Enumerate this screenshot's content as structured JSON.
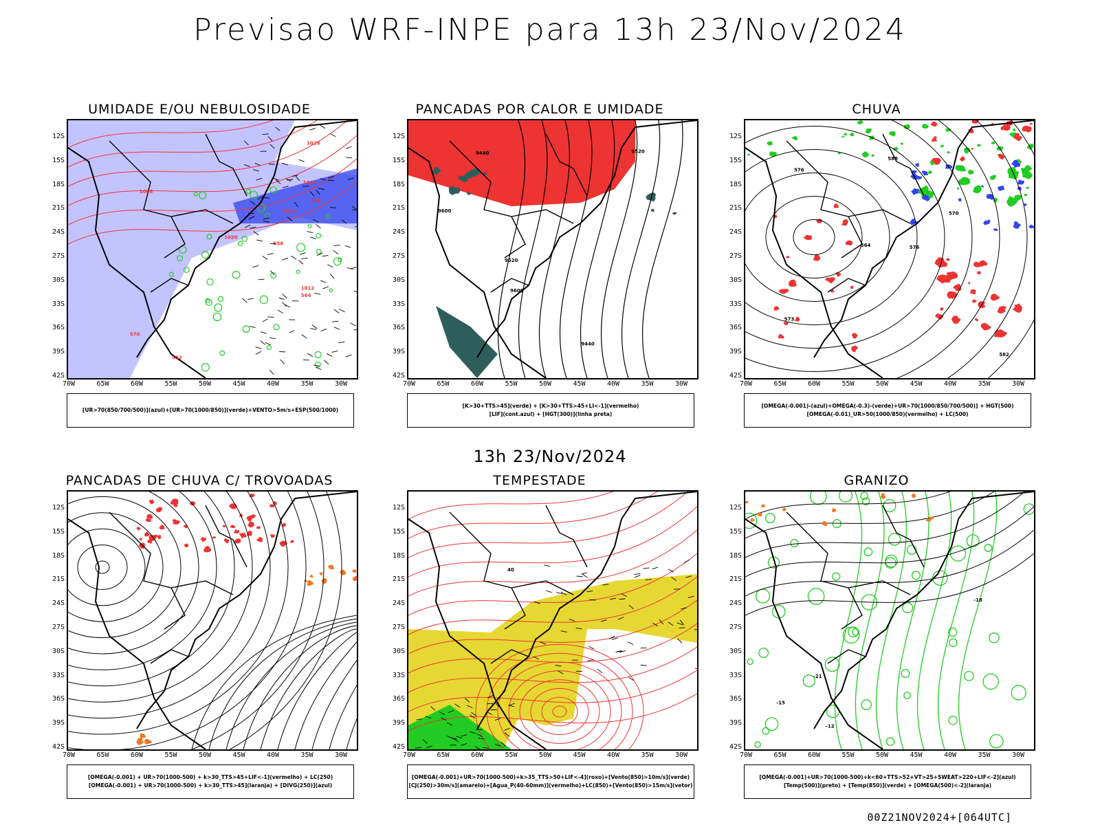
{
  "main_title": "Previsao WRF-INPE  para 13h 23/Nov/2024",
  "mid_title": "13h 23/Nov/2024",
  "footer": "00Z21NOV2024+[064UTC]",
  "axes": {
    "lat_labels": [
      "12S",
      "15S",
      "18S",
      "21S",
      "24S",
      "27S",
      "30S",
      "33S",
      "36S",
      "39S",
      "42S"
    ],
    "lon_labels": [
      "70W",
      "65W",
      "60W",
      "55W",
      "50W",
      "45W",
      "40W",
      "35W",
      "30W"
    ]
  },
  "colors": {
    "blue": "#3344ee",
    "light_blue": "#aaaaff",
    "green": "#22cc22",
    "red": "#ee3333",
    "orange": "#ee7722",
    "yellow": "#e6d832",
    "dark_teal": "#2e5e5a"
  },
  "panels": [
    {
      "title": "UMIDADE E/OU NEBULOSIDADE",
      "legend": [
        "[UR>70(850/700/500)](azul)+[UR>70(1000/850)](verde)+VENTO>5m/s+ESP(500/1000)"
      ],
      "contour_labels": [
        "1008",
        "1012",
        "1016",
        "1020",
        "1024",
        "1028",
        "570",
        "576",
        "558",
        "564",
        "552"
      ]
    },
    {
      "title": "PANCADAS POR CALOR E UMIDADE",
      "legend": [
        "[K>30+TTS>45](verde) + [K>30+TTS>45+LI<-1](vermelho)",
        "[LIF](cont.azul) + [HGT(300)](linha preta)"
      ],
      "contour_labels": [
        "9600",
        "9520",
        "9440",
        "9600",
        "9520",
        "9440"
      ]
    },
    {
      "title": "CHUVA",
      "legend": [
        "[OMEGA(-0.001)-(azul)+OMEGA(-0.3)-(verde)+UR>70(1000/850/700/500)] + HGT(500)",
        "[OMEGA(-0.01)_UR>50(1000/850)(vermelho) + LC(500)"
      ],
      "contour_labels": [
        "582",
        "576",
        "570",
        "564",
        "588",
        "576",
        "573"
      ]
    },
    {
      "title": "PANCADAS DE CHUVA C/ TROVOADAS",
      "legend": [
        "[OMEGA(-0.001) + UR>70(1000-500) + k>30_TTS>45+LIF<-1](vermelho) + LC(250)",
        "[OMEGA(-0.001) + UR>70(1000-500) + k>30_TTS>45](laranja) + [DIVG(250)](azul)"
      ],
      "contour_labels": []
    },
    {
      "title": "TEMPESTADE",
      "legend": [
        "[OMEGA(-0.001)+UR>70(1000-500)+k>35_TTS>50+LIF<-4](roxo)+[Vento(850)>10m/s](verde)",
        "[CJ(250)>30m/s](amarelo)+[Agua_P(40-60mm)](vermelho)+LC(850)+[Vento(850)>15m/s](vetor)"
      ],
      "contour_labels": [
        "40"
      ]
    },
    {
      "title": "GRANIZO",
      "legend": [
        "[OMEGA(-0.001)+UR>70(1000-500)+k<60+TTS>52+VT>25+SWEAT>220+LIF<-2](azul)",
        "[Temp(500)](preto) + [Temp(850)](verde) + [OMEGA(500)<-2](laranja)"
      ],
      "contour_labels": [
        "-12",
        "-15",
        "-18",
        "-21"
      ]
    }
  ]
}
